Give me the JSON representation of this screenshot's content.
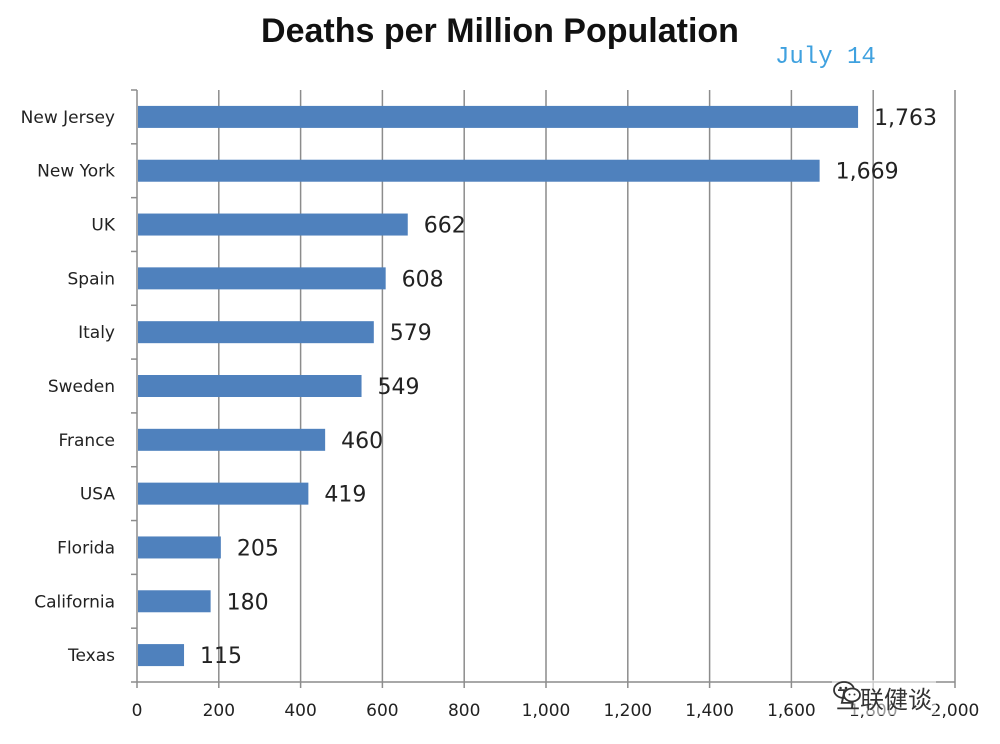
{
  "chart_data": {
    "type": "bar",
    "orientation": "horizontal",
    "title": "Deaths per Million Population",
    "annotation": "July 14",
    "categories": [
      "New Jersey",
      "New York",
      "UK",
      "Spain",
      "Italy",
      "Sweden",
      "France",
      "USA",
      "Florida",
      "California",
      "Texas"
    ],
    "values": [
      1763,
      1669,
      662,
      608,
      579,
      549,
      460,
      419,
      205,
      180,
      115
    ],
    "value_labels": [
      "1,763",
      "1,669",
      "662",
      "608",
      "579",
      "549",
      "460",
      "419",
      "205",
      "180",
      "115"
    ],
    "xlim": [
      0,
      2000
    ],
    "ticks": [
      0,
      200,
      400,
      600,
      800,
      1000,
      1200,
      1400,
      1600,
      1800,
      2000
    ],
    "tick_labels": [
      "0",
      "200",
      "400",
      "600",
      "800",
      "1,000",
      "1,200",
      "1,400",
      "1,600",
      "1,800",
      "2,000"
    ],
    "grid": true,
    "bar_color": "#4f81bd",
    "grid_color": "#8c8c8c"
  },
  "watermark": {
    "text": "互联健谈",
    "icon": "wechat-icon"
  }
}
